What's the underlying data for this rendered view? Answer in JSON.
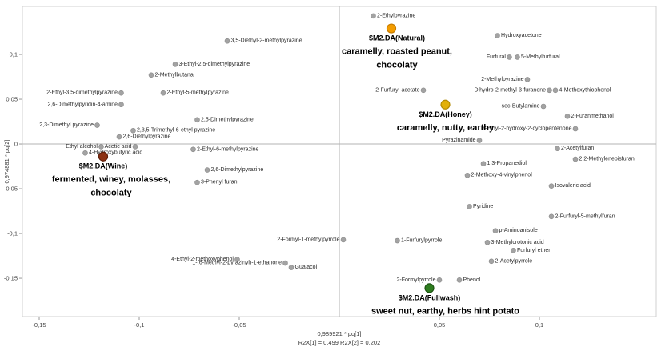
{
  "chart_data": {
    "type": "scatter",
    "title": "",
    "xlabel": "0,989921 * pq[1]",
    "xlabel_note": "R2X[1] = 0,499   R2X[2] = 0,202",
    "ylabel": "0,974881 * pq[2]",
    "xlim": [
      -0.1584,
      0.1584
    ],
    "ylim": [
      -0.1928,
      0.1536
    ],
    "grid": false,
    "legend": "none",
    "x_ticks": [
      {
        "v": -0.15,
        "t": "-0,15"
      },
      {
        "v": -0.1,
        "t": "-0,1"
      },
      {
        "v": -0.05,
        "t": "-0,05"
      },
      {
        "v": 0.05,
        "t": "0,05"
      },
      {
        "v": 0.1,
        "t": "0,1"
      }
    ],
    "y_ticks": [
      {
        "v": 0.1,
        "t": "0,1"
      },
      {
        "v": 0.05,
        "t": "0,05"
      },
      {
        "v": 0,
        "t": "0"
      },
      {
        "v": -0.05,
        "t": "-0,05"
      },
      {
        "v": -0.1,
        "t": "-0,1"
      },
      {
        "v": -0.15,
        "t": "-0,15"
      }
    ],
    "colors": {
      "marker": "#a3a3a3",
      "marker_stroke": "#8a8a8a",
      "text": "#2b2b2b",
      "frame": "#d0d0d0",
      "zero_line": "#b3b3b3",
      "tick_text": "#444444"
    },
    "compounds": [
      {
        "label": "3,5-Diethyl-2-methylpyrazine",
        "x": -0.056,
        "y": 0.115,
        "side": "right"
      },
      {
        "label": "3-Ethyl-2,5-dimethylpyrazine",
        "x": -0.082,
        "y": 0.089,
        "side": "right"
      },
      {
        "label": "2-Methylbutanal",
        "x": -0.094,
        "y": 0.077,
        "side": "right"
      },
      {
        "label": "2-Ethyl-3,5-dimethylpyrazine",
        "x": -0.109,
        "y": 0.057,
        "side": "left"
      },
      {
        "label": "2-Ethyl-5-methylpyrazine",
        "x": -0.088,
        "y": 0.057,
        "side": "right"
      },
      {
        "label": "2,6-Dimethylpyridin-4-amine",
        "x": -0.109,
        "y": 0.044,
        "side": "left"
      },
      {
        "label": "2,5-Dimethylpyrazine",
        "x": -0.071,
        "y": 0.027,
        "side": "right"
      },
      {
        "label": "2,3-Dimethyl pyrazine",
        "x": -0.121,
        "y": 0.021,
        "side": "left"
      },
      {
        "label": "2,3,5-Trimethyl-6-ethyl pyrazine",
        "x": -0.103,
        "y": 0.015,
        "side": "right"
      },
      {
        "label": "2,6-Diethylpyrazine",
        "x": -0.11,
        "y": 0.008,
        "side": "right"
      },
      {
        "label": "Ethyl alcohol",
        "x": -0.119,
        "y": -0.003,
        "side": "left"
      },
      {
        "label": "Acetic acid",
        "x": -0.102,
        "y": -0.003,
        "side": "left"
      },
      {
        "label": "4-Hydroxybutyric acid",
        "x": -0.127,
        "y": -0.01,
        "side": "right"
      },
      {
        "label": "2-Ethyl-6-methylpyrazine",
        "x": -0.073,
        "y": -0.006,
        "side": "right"
      },
      {
        "label": "2,6-Dimethylpyrazine",
        "x": -0.066,
        "y": -0.029,
        "side": "right"
      },
      {
        "label": "3-Phenyl furan",
        "x": -0.071,
        "y": -0.043,
        "side": "right"
      },
      {
        "label": "2-Formyl-1-methylpyrrole",
        "x": 0.002,
        "y": -0.107,
        "side": "left"
      },
      {
        "label": "4-Ethyl-2-methoxyphenol",
        "x": -0.051,
        "y": -0.129,
        "side": "left"
      },
      {
        "label": "1-(6-Methyl-2-pyrazinyl)-1-ethanone",
        "x": -0.027,
        "y": -0.133,
        "side": "left"
      },
      {
        "label": "Guaiacol",
        "x": -0.024,
        "y": -0.138,
        "side": "right"
      },
      {
        "label": "2-Ethylpyrazine",
        "x": 0.017,
        "y": 0.143,
        "side": "right"
      },
      {
        "label": "Hydroxyacetone",
        "x": 0.079,
        "y": 0.121,
        "side": "right"
      },
      {
        "label": "Furfural",
        "x": 0.085,
        "y": 0.097,
        "side": "left"
      },
      {
        "label": "5-Methylfurfural",
        "x": 0.089,
        "y": 0.097,
        "side": "right"
      },
      {
        "label": "2-Methylpyrazine",
        "x": 0.094,
        "y": 0.072,
        "side": "left"
      },
      {
        "label": "2-Furfuryl-acetate",
        "x": 0.042,
        "y": 0.06,
        "side": "left"
      },
      {
        "label": "Dihydro-2-methyl-3-furanone",
        "x": 0.105,
        "y": 0.06,
        "side": "left"
      },
      {
        "label": "4-Methoxythiophenol",
        "x": 0.108,
        "y": 0.06,
        "side": "right"
      },
      {
        "label": "sec-Butylamine",
        "x": 0.102,
        "y": 0.042,
        "side": "left"
      },
      {
        "label": "2-Furanmethanol",
        "x": 0.114,
        "y": 0.031,
        "side": "right"
      },
      {
        "label": "3-Ethyl-2-hydroxy-2-cyclopentenone",
        "x": 0.118,
        "y": 0.017,
        "side": "left"
      },
      {
        "label": "Pyrazinamide",
        "x": 0.07,
        "y": 0.004,
        "side": "left"
      },
      {
        "label": "2-Acetylfuran",
        "x": 0.109,
        "y": -0.005,
        "side": "right"
      },
      {
        "label": "2,2-Methylenebisfuran",
        "x": 0.118,
        "y": -0.017,
        "side": "right"
      },
      {
        "label": "1,3-Propanediol",
        "x": 0.072,
        "y": -0.022,
        "side": "right"
      },
      {
        "label": "2-Methoxy-4-vinylphenol",
        "x": 0.064,
        "y": -0.035,
        "side": "right"
      },
      {
        "label": "Isovaleric acid",
        "x": 0.106,
        "y": -0.047,
        "side": "right"
      },
      {
        "label": "Pyridine",
        "x": 0.065,
        "y": -0.07,
        "side": "right"
      },
      {
        "label": "2-Furfuryl-5-methylfuran",
        "x": 0.106,
        "y": -0.081,
        "side": "right"
      },
      {
        "label": "p-Aminoanisole",
        "x": 0.078,
        "y": -0.097,
        "side": "right"
      },
      {
        "label": "1-Furfurylpyrrole",
        "x": 0.029,
        "y": -0.108,
        "side": "right"
      },
      {
        "label": "3-Methylcrotonic acid",
        "x": 0.074,
        "y": -0.11,
        "side": "right"
      },
      {
        "label": "Furfuryl ether",
        "x": 0.087,
        "y": -0.119,
        "side": "right"
      },
      {
        "label": "2-Acetylpyrrole",
        "x": 0.076,
        "y": -0.131,
        "side": "right"
      },
      {
        "label": "2-Formylpyrrole",
        "x": 0.05,
        "y": -0.152,
        "side": "left"
      },
      {
        "label": "Phenol",
        "x": 0.06,
        "y": -0.152,
        "side": "right"
      }
    ],
    "samples": [
      {
        "id": "natural",
        "label": "$M2.DA(Natural)",
        "desc": [
          "caramelly, roasted peanut,",
          "chocolaty"
        ],
        "x": 0.026,
        "y": 0.129,
        "color": "#f39c00",
        "stroke": "#c67c00",
        "label_dx": 7,
        "desc_dx": 7
      },
      {
        "id": "honey",
        "label": "$M2.DA(Honey)",
        "desc": [
          "caramelly, nutty, earthy"
        ],
        "x": 0.053,
        "y": 0.044,
        "color": "#e2b007",
        "stroke": "#b28900",
        "label_dx": 0,
        "desc_dx": 0
      },
      {
        "id": "wine",
        "label": "$M2.DA(Wine)",
        "desc": [
          "fermented, winey, molasses,",
          "chocolaty"
        ],
        "x": -0.118,
        "y": -0.014,
        "color": "#8c3113",
        "stroke": "#5f1f09",
        "label_dx": 0,
        "desc_dx": 10
      },
      {
        "id": "fullwash",
        "label": "$M2.DA(Fullwash)",
        "desc": [
          "sweet nut, earthy, herbs hint potato"
        ],
        "x": 0.045,
        "y": -0.161,
        "color": "#2e7d1f",
        "stroke": "#1d5413",
        "label_dx": 0,
        "desc_dx": 20
      }
    ]
  }
}
